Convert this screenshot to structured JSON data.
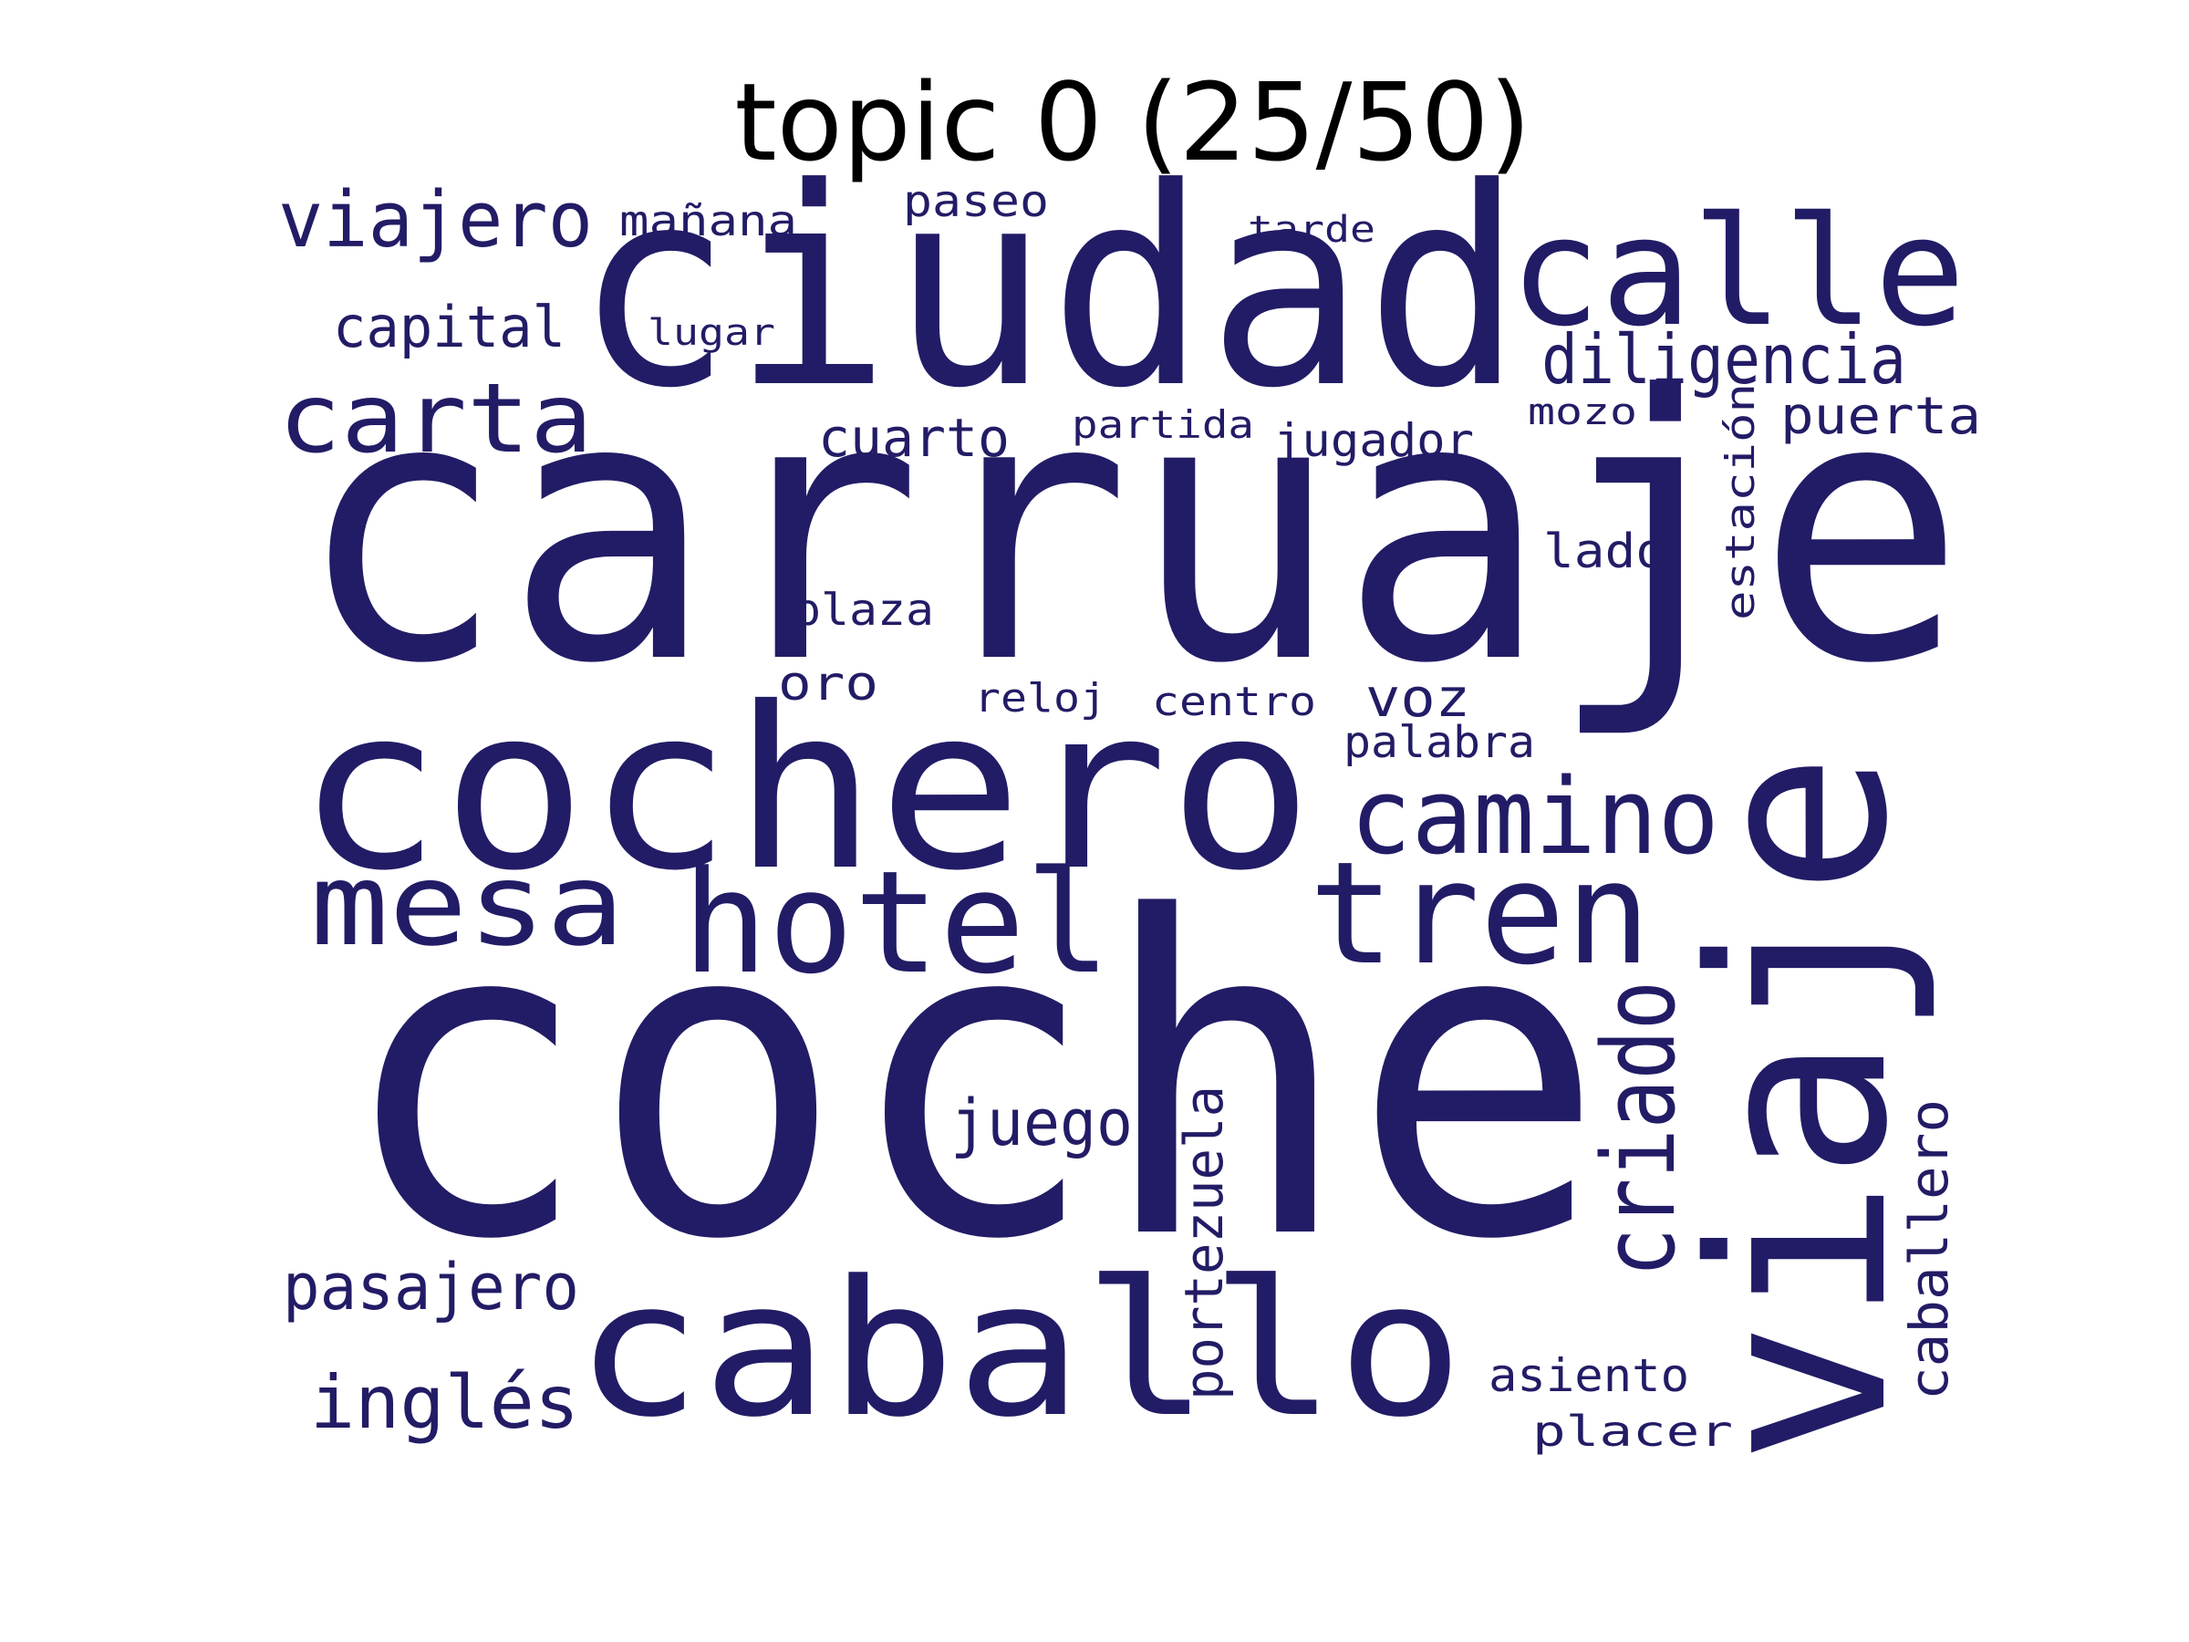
{
  "title": "topic 0 (25/50)",
  "word_color": "#221c66",
  "title_color": "#000000",
  "words": [
    {
      "text": "coche"
    },
    {
      "text": "carruaje"
    },
    {
      "text": "ciudad"
    },
    {
      "text": "cochero"
    },
    {
      "text": "viaje"
    },
    {
      "text": "caballo"
    },
    {
      "text": "calle"
    },
    {
      "text": "hotel"
    },
    {
      "text": "tren"
    },
    {
      "text": "mesa"
    },
    {
      "text": "camino"
    },
    {
      "text": "criado"
    },
    {
      "text": "carta"
    },
    {
      "text": "viajero"
    },
    {
      "text": "diligencia"
    },
    {
      "text": "pasajero"
    },
    {
      "text": "inglés"
    },
    {
      "text": "juego"
    },
    {
      "text": "portezuela"
    },
    {
      "text": "caballero"
    },
    {
      "text": "capital"
    },
    {
      "text": "cuarto"
    },
    {
      "text": "puerta"
    },
    {
      "text": "voz"
    },
    {
      "text": "asiento"
    },
    {
      "text": "estación"
    },
    {
      "text": "jugador"
    },
    {
      "text": "mañana"
    },
    {
      "text": "plaza"
    },
    {
      "text": "oro"
    },
    {
      "text": "lado"
    },
    {
      "text": "placer"
    },
    {
      "text": "palabra"
    },
    {
      "text": "paseo"
    },
    {
      "text": "centro"
    },
    {
      "text": "reloj"
    },
    {
      "text": "lugar"
    },
    {
      "text": "partida"
    },
    {
      "text": "tarde"
    },
    {
      "text": "mozo"
    }
  ]
}
